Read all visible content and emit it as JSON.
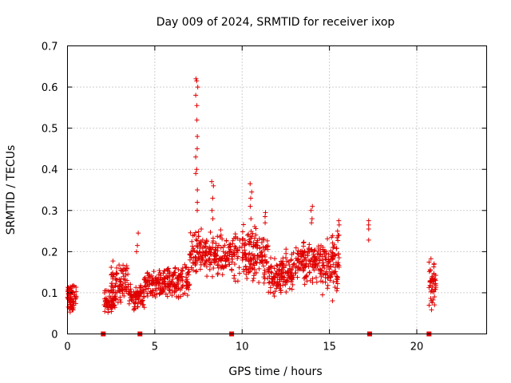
{
  "chart_data": {
    "type": "scatter",
    "title": "Day 009 of 2024, SRMTID for receiver ixop",
    "xlabel": "GPS time / hours",
    "ylabel": "SRMTID / TECUs",
    "xlim": [
      0,
      24
    ],
    "ylim": [
      0,
      0.7
    ],
    "xticks": [
      0,
      5,
      10,
      15,
      20
    ],
    "yticks": [
      0,
      0.1,
      0.2,
      0.3,
      0.4,
      0.5,
      0.6,
      0.7
    ],
    "xtick_labels": [
      "0",
      "5",
      "10",
      "15",
      "20"
    ],
    "ytick_labels": [
      "0",
      "0.1",
      "0.2",
      "0.3",
      "0.4",
      "0.5",
      "0.6",
      "0.7"
    ],
    "grid": true,
    "marker": "+",
    "color": "#e00000",
    "data_gap_hours": [
      2.05,
      4.15,
      9.4,
      17.3,
      20.7
    ],
    "clusters": [
      {
        "x": [
          0.0,
          0.5
        ],
        "y_range": [
          0.04,
          0.14
        ],
        "n": 70
      },
      {
        "x": [
          2.1,
          2.8
        ],
        "y_range": [
          0.04,
          0.12
        ],
        "n": 60
      },
      {
        "x": [
          2.5,
          3.5
        ],
        "y_range": [
          0.06,
          0.19
        ],
        "n": 90
      },
      {
        "x": [
          3.5,
          4.4
        ],
        "y_range": [
          0.05,
          0.13
        ],
        "n": 80
      },
      {
        "x": [
          4.4,
          5.5
        ],
        "y_range": [
          0.08,
          0.17
        ],
        "n": 90
      },
      {
        "x": [
          5.5,
          7.0
        ],
        "y_range": [
          0.07,
          0.18
        ],
        "n": 130
      },
      {
        "x": [
          7.0,
          8.0
        ],
        "y_range": [
          0.13,
          0.27
        ],
        "n": 90
      },
      {
        "x": [
          8.0,
          9.5
        ],
        "y_range": [
          0.12,
          0.26
        ],
        "n": 120
      },
      {
        "x": [
          9.5,
          11.5
        ],
        "y_range": [
          0.1,
          0.28
        ],
        "n": 170
      },
      {
        "x": [
          11.5,
          13.0
        ],
        "y_range": [
          0.07,
          0.22
        ],
        "n": 140
      },
      {
        "x": [
          13.0,
          14.5
        ],
        "y_range": [
          0.11,
          0.24
        ],
        "n": 130
      },
      {
        "x": [
          14.5,
          15.6
        ],
        "y_range": [
          0.07,
          0.27
        ],
        "n": 110
      },
      {
        "x": [
          20.7,
          21.1
        ],
        "y_range": [
          0.04,
          0.2
        ],
        "n": 50
      }
    ],
    "peaks": [
      {
        "x": 7.4,
        "y": [
          0.62,
          0.615,
          0.6,
          0.58,
          0.555,
          0.52,
          0.48,
          0.45,
          0.43,
          0.4,
          0.39,
          0.35,
          0.32,
          0.3
        ]
      },
      {
        "x": 8.3,
        "y": [
          0.37,
          0.36,
          0.33,
          0.3,
          0.28
        ]
      },
      {
        "x": 10.5,
        "y": [
          0.365,
          0.345,
          0.33,
          0.31,
          0.28
        ]
      },
      {
        "x": 4.0,
        "y": [
          0.245,
          0.215,
          0.2
        ]
      },
      {
        "x": 14.0,
        "y": [
          0.31,
          0.3,
          0.28,
          0.27
        ]
      },
      {
        "x": 17.3,
        "y": [
          0.275,
          0.265,
          0.255,
          0.228
        ]
      },
      {
        "x": 15.5,
        "y": [
          0.275,
          0.265,
          0.25,
          0.24
        ]
      },
      {
        "x": 11.3,
        "y": [
          0.295,
          0.285,
          0.27
        ]
      }
    ]
  }
}
